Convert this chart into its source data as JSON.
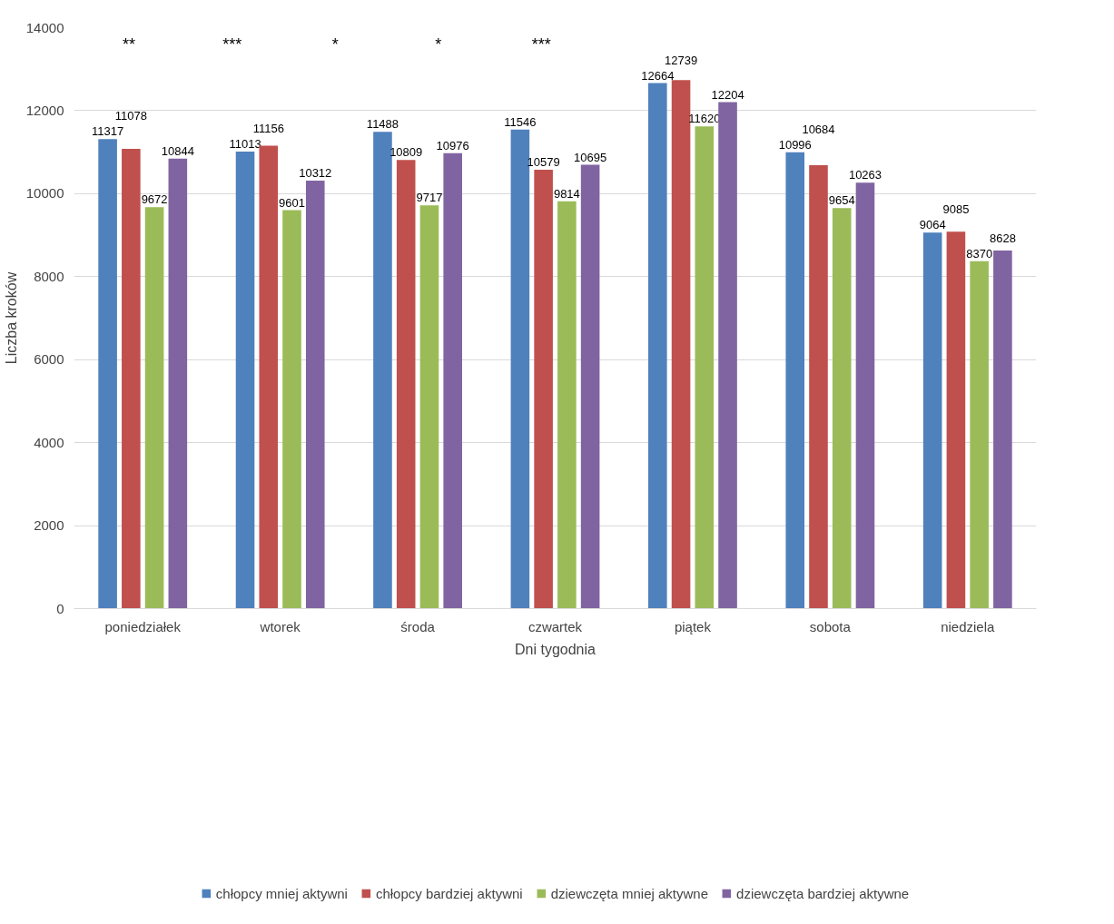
{
  "chart_data": {
    "type": "bar",
    "xlabel": "Dni tygodnia",
    "ylabel": "Liczba kroków",
    "categories": [
      "poniedziałek",
      "wtorek",
      "środa",
      "czwartek",
      "piątek",
      "sobota",
      "niedziela"
    ],
    "series": [
      {
        "name": "chłopcy mniej aktywni",
        "color": "#4f81bd",
        "values": [
          11317,
          11013,
          11488,
          11546,
          12664,
          10996,
          9064
        ]
      },
      {
        "name": "chłopcy bardziej aktywni",
        "color": "#c0504d",
        "values": [
          11078,
          11156,
          10809,
          10579,
          12739,
          10684,
          9085
        ]
      },
      {
        "name": "dziewczęta mniej aktywne",
        "color": "#9bbb59",
        "values": [
          9672,
          9601,
          9717,
          9814,
          11620,
          9654,
          8370
        ]
      },
      {
        "name": "dziewczęta bardziej aktywne",
        "color": "#8064a2",
        "values": [
          10844,
          10312,
          10976,
          10695,
          12204,
          10263,
          8628
        ]
      }
    ],
    "ylim": [
      0,
      14000
    ],
    "yticks": [
      0,
      2000,
      4000,
      6000,
      8000,
      10000,
      12000,
      14000
    ],
    "grid": "y",
    "legend": "bottom",
    "data_labels": true,
    "annotations": [
      "**",
      "***",
      "*",
      "*",
      "***"
    ]
  }
}
